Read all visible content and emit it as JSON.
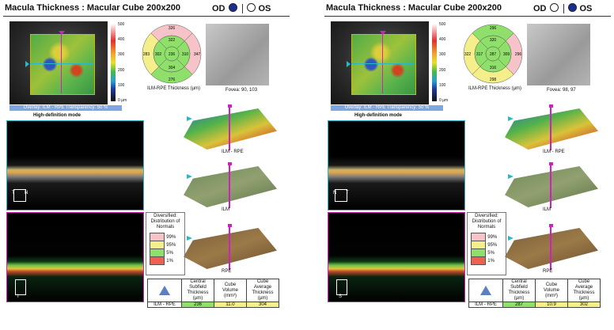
{
  "panels": [
    {
      "title": "Macula Thickness : Macular Cube 200x200",
      "eye_od": "OD",
      "eye_os": "OS",
      "selected_eye": "OD",
      "scale_ticks": [
        "500",
        "400",
        "300",
        "200",
        "100",
        "0 µm"
      ],
      "overlay_text": "Overlay: ILM - RPE  Transparency: 50 %",
      "mode_text": "High-definition mode",
      "etdrs": {
        "outer_top": "326",
        "outer_left": "283",
        "outer_right": "347",
        "outer_bottom": "276",
        "inner_top": "322",
        "inner_left": "302",
        "inner_right": "310",
        "inner_bottom": "304",
        "center": "236"
      },
      "etdrs_colors": {
        "outer_top": "#f6c4c8",
        "outer_left": "#f4ef8a",
        "outer_right": "#f6c4c8",
        "outer_bottom": "#8fe06a",
        "inner_top": "#8fe06a",
        "inner_left": "#8fe06a",
        "inner_right": "#8fe06a",
        "inner_bottom": "#8fe06a",
        "center": "#8fe06a"
      },
      "etdrs_caption": "ILM-RPE Thickness (µm)",
      "fovea_caption": "Fovea: 90, 103",
      "surface_labels": [
        "ILM - RPE",
        "ILM",
        "RPE"
      ],
      "oct_markers": {
        "top_left": "T",
        "top_right": "N",
        "bottom": "I"
      },
      "legend_title": "Diversified: Distribution of Normals",
      "legend_rows": [
        "99%",
        "95%",
        "5%",
        "1%"
      ],
      "legend_colors": [
        "#f6c4c8",
        "#f4ef8a",
        "#8fe06a",
        "#f06050"
      ],
      "table_headers": [
        "Central Subfield Thickness (µm)",
        "Cube Volume (mm³)",
        "Cube Average Thickness (µm)"
      ],
      "table_row_label": "ILM - RPE",
      "table_values": [
        "236",
        "11.0",
        "304"
      ],
      "table_value_colors": [
        "#8fe06a",
        "#f4ef8a",
        "#f4ef8a"
      ]
    },
    {
      "title": "Macula Thickness : Macular Cube 200x200",
      "eye_od": "OD",
      "eye_os": "OS",
      "selected_eye": "OS",
      "scale_ticks": [
        "500",
        "400",
        "300",
        "200",
        "100",
        "0 µm"
      ],
      "overlay_text": "Overlay: ILM - RPE  Transparency: 50 %",
      "mode_text": "High-definition mode",
      "etdrs": {
        "outer_top": "296",
        "outer_left": "322",
        "outer_right": "296",
        "outer_bottom": "298",
        "inner_top": "320",
        "inner_left": "317",
        "inner_right": "309",
        "inner_bottom": "316",
        "center": "287"
      },
      "etdrs_colors": {
        "outer_top": "#8fe06a",
        "outer_left": "#f4ef8a",
        "outer_right": "#f6c4c8",
        "outer_bottom": "#f4ef8a",
        "inner_top": "#8fe06a",
        "inner_left": "#8fe06a",
        "inner_right": "#8fe06a",
        "inner_bottom": "#8fe06a",
        "center": "#8fe06a"
      },
      "etdrs_caption": "ILM-RPE Thickness (µm)",
      "fovea_caption": "Fovea: 98, 97",
      "surface_labels": [
        "ILM - RPE",
        "ILM",
        "RPE"
      ],
      "oct_markers": {
        "top_left": "N",
        "top_right": "T",
        "bottom": "S"
      },
      "legend_title": "Diversified: Distribution of Normals",
      "legend_rows": [
        "99%",
        "95%",
        "5%",
        "1%"
      ],
      "legend_colors": [
        "#f6c4c8",
        "#f4ef8a",
        "#8fe06a",
        "#f06050"
      ],
      "table_headers": [
        "Central Subfield Thickness (µm)",
        "Cube Volume (mm³)",
        "Cube Average Thickness (µm)"
      ],
      "table_row_label": "ILM - RPE",
      "table_values": [
        "287",
        "10.9",
        "302"
      ],
      "table_value_colors": [
        "#8fe06a",
        "#f4ef8a",
        "#f4ef8a"
      ]
    }
  ]
}
